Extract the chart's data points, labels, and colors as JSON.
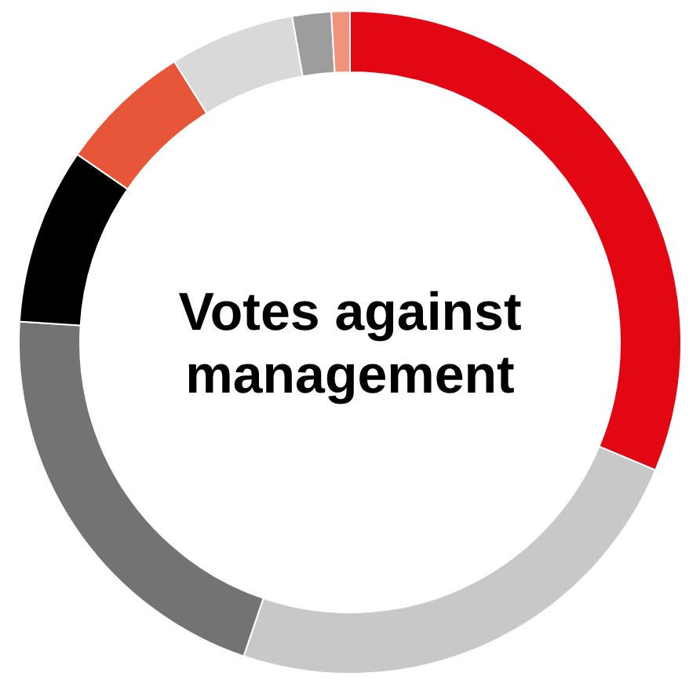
{
  "chart_data": {
    "type": "donut",
    "title": "Votes against management",
    "categories": [
      null,
      null,
      null,
      null,
      null,
      null,
      null,
      null
    ],
    "values": [
      31.3,
      23.9,
      20.8,
      8.6,
      6.5,
      6.1,
      1.9,
      0.9
    ],
    "colors": [
      "#e30613",
      "#c8c8c8",
      "#737373",
      "#000000",
      "#e8563a",
      "#d9d9d9",
      "#9d9d9d",
      "#f0937a"
    ]
  }
}
